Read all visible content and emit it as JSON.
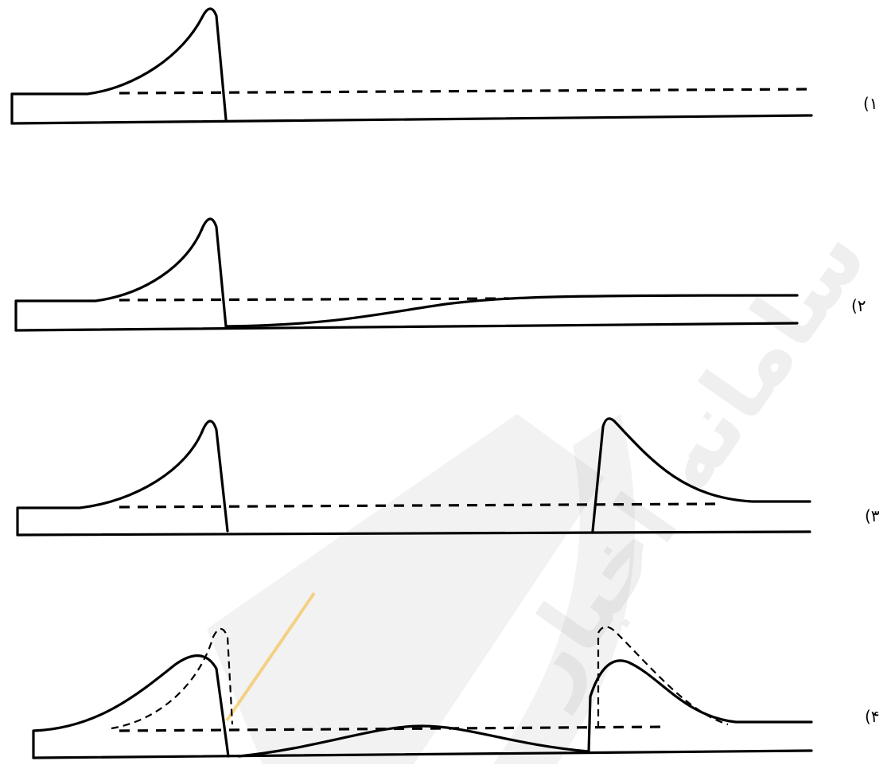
{
  "options": [
    {
      "id": "1",
      "label": "(۱"
    },
    {
      "id": "2",
      "label": "(۲"
    },
    {
      "id": "3",
      "label": "(۳"
    },
    {
      "id": "4",
      "label": "(۴"
    }
  ],
  "watermark": {
    "text": "سامانه اخبار"
  }
}
